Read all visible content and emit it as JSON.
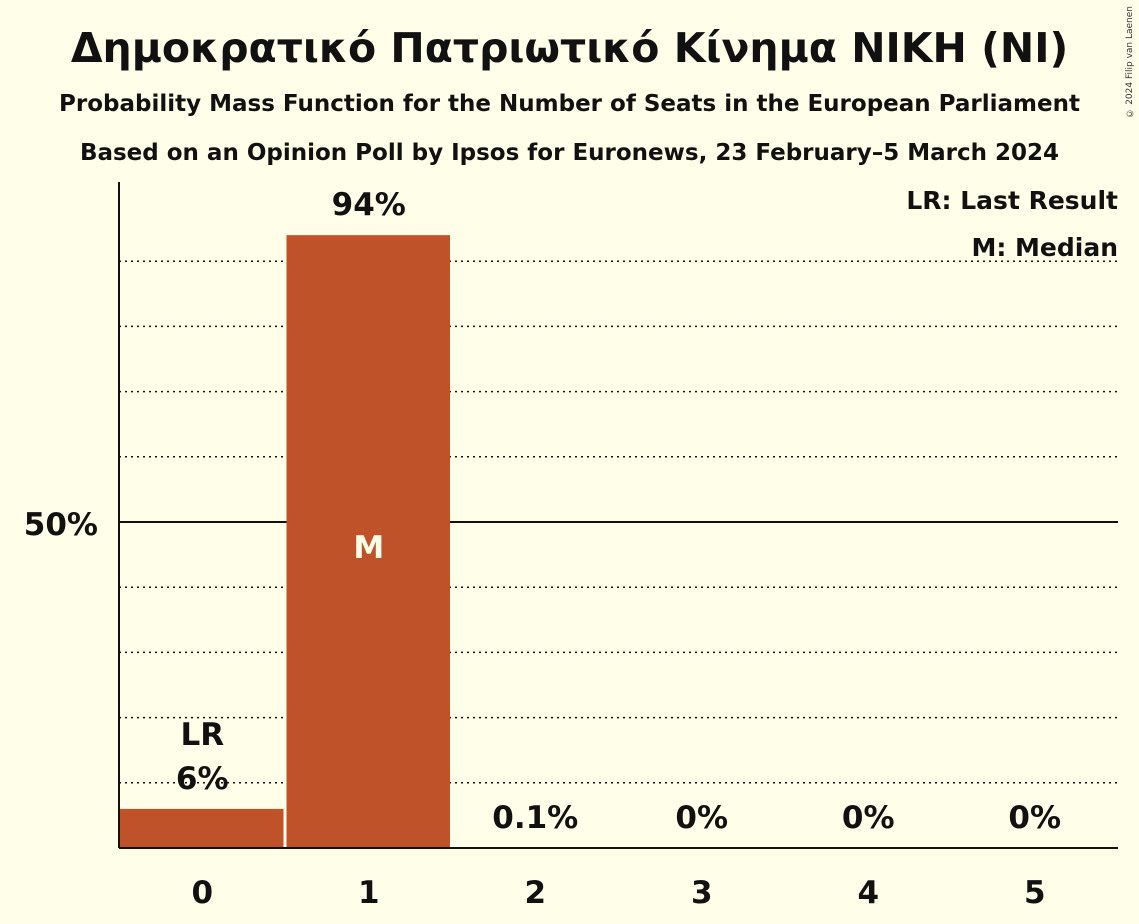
{
  "title": "Δημοκρατικό Πατριωτικό Κίνημα ΝΙΚΗ (NI)",
  "subtitle": "Probability Mass Function for the Number of Seats in the European Parliament",
  "subtitle2": "Based on an Opinion Poll by Ipsos for Euronews, 23 February–5 March 2024",
  "copyright": "© 2024 Filip van Laenen",
  "legend": {
    "last_result": "LR: Last Result",
    "median": "M: Median"
  },
  "colors": {
    "bar": "#C0522A",
    "background": "#FFFEE8"
  },
  "chart_data": {
    "type": "bar",
    "categories": [
      "0",
      "1",
      "2",
      "3",
      "4",
      "5"
    ],
    "values": [
      6,
      94,
      0.1,
      0,
      0,
      0
    ],
    "value_labels": [
      "6%",
      "94%",
      "0.1%",
      "0%",
      "0%",
      "0%"
    ],
    "ylim": [
      0,
      100
    ],
    "ytick_labels": [
      {
        "value": 50,
        "label": "50%"
      }
    ],
    "gridlines_every": 10,
    "last_result_category": "0",
    "last_result_label": "LR",
    "median_category": "1",
    "median_label": "M",
    "legend_position": "top-right"
  }
}
